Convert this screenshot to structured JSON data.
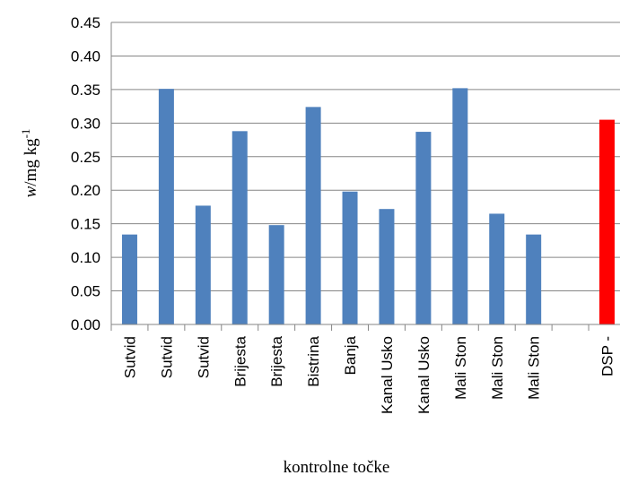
{
  "chart_data": {
    "type": "bar",
    "title": "",
    "xlabel": "kontrolne točke",
    "ylabel": {
      "var": "w",
      "unit": "/mg kg",
      "exp": "-1"
    },
    "ylim": [
      0,
      0.45
    ],
    "ytick_step": 0.05,
    "grid": true,
    "legend": "none",
    "categories": [
      "Sutvid",
      "Sutvid",
      "Sutvid",
      "Brijesta",
      "Brijesta",
      "Bistrina",
      "Banja",
      "Kanal Usko",
      "Kanal Usko",
      "Mali Ston",
      "Mali Ston",
      "Mali Ston",
      "",
      "DSP -"
    ],
    "values": [
      0.134,
      0.351,
      0.177,
      0.288,
      0.148,
      0.324,
      0.198,
      0.172,
      0.287,
      0.352,
      0.165,
      0.134,
      null,
      0.305
    ],
    "colors": {
      "default": "#4f81bd",
      "highlight": "#ff0000",
      "highlight_index": 13
    }
  }
}
